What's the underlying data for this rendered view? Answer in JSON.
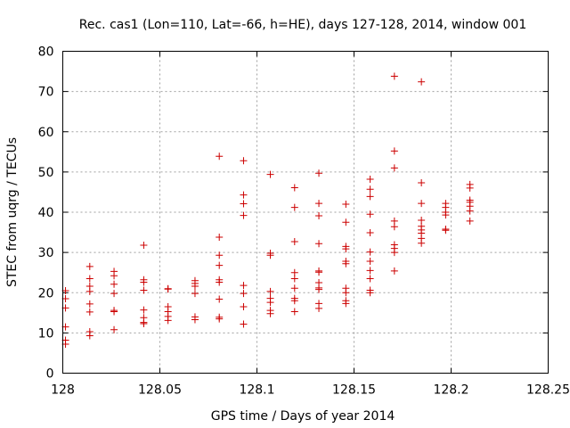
{
  "chart_data": {
    "type": "scatter",
    "title": "Rec. cas1 (Lon=110, Lat=-66, h=HE), days 127-128, 2014, window 001",
    "xlabel": "GPS time / Days of year 2014",
    "ylabel": "STEC from uqrg / TECUs",
    "xlim": [
      128,
      128.25
    ],
    "ylim": [
      0,
      80
    ],
    "x_ticks": [
      128,
      128.05,
      128.1,
      128.15,
      128.2,
      128.25
    ],
    "x_tick_labels": [
      "128",
      "128.05",
      "128.1",
      "128.15",
      "128.2",
      "128.25"
    ],
    "y_ticks": [
      0,
      10,
      20,
      30,
      40,
      50,
      60,
      70,
      80
    ],
    "y_tick_labels": [
      "0",
      "10",
      "20",
      "30",
      "40",
      "50",
      "60",
      "70",
      "80"
    ],
    "grid": true,
    "marker": "+",
    "color": "#cc0000",
    "series": [
      {
        "name": "STEC",
        "points": [
          [
            128.0014,
            7.2
          ],
          [
            128.0014,
            8.2
          ],
          [
            128.0014,
            11.5
          ],
          [
            128.0014,
            16.2
          ],
          [
            128.0014,
            18.5
          ],
          [
            128.0014,
            20.5
          ],
          [
            128.0139,
            9.3
          ],
          [
            128.0139,
            10.3
          ],
          [
            128.0139,
            15.2
          ],
          [
            128.0139,
            17.2
          ],
          [
            128.0139,
            20.3
          ],
          [
            128.0139,
            21.6
          ],
          [
            128.0139,
            23.5
          ],
          [
            128.0139,
            26.5
          ],
          [
            128.0264,
            10.8
          ],
          [
            128.0264,
            15.3
          ],
          [
            128.0264,
            15.6
          ],
          [
            128.0264,
            19.8
          ],
          [
            128.0264,
            22.1
          ],
          [
            128.0264,
            24.2
          ],
          [
            128.0264,
            25.3
          ],
          [
            128.0417,
            12.3
          ],
          [
            128.0417,
            12.6
          ],
          [
            128.0417,
            13.8
          ],
          [
            128.0417,
            15.7
          ],
          [
            128.0417,
            20.6
          ],
          [
            128.0417,
            22.6
          ],
          [
            128.0417,
            23.2
          ],
          [
            128.0417,
            31.8
          ],
          [
            128.0542,
            13.1
          ],
          [
            128.0542,
            14.1
          ],
          [
            128.0542,
            15.3
          ],
          [
            128.0542,
            16.5
          ],
          [
            128.0542,
            20.9
          ],
          [
            128.0542,
            21.0
          ],
          [
            128.0681,
            13.3
          ],
          [
            128.0681,
            14.0
          ],
          [
            128.0681,
            19.8
          ],
          [
            128.0681,
            21.6
          ],
          [
            128.0681,
            22.3
          ],
          [
            128.0681,
            23.0
          ],
          [
            128.0806,
            13.5
          ],
          [
            128.0806,
            13.9
          ],
          [
            128.0806,
            18.4
          ],
          [
            128.0806,
            22.6
          ],
          [
            128.0806,
            23.2
          ],
          [
            128.0806,
            26.8
          ],
          [
            128.0806,
            29.3
          ],
          [
            128.0806,
            33.8
          ],
          [
            128.0806,
            53.9
          ],
          [
            128.0931,
            12.2
          ],
          [
            128.0931,
            16.5
          ],
          [
            128.0931,
            19.8
          ],
          [
            128.0931,
            21.8
          ],
          [
            128.0931,
            39.2
          ],
          [
            128.0931,
            42.1
          ],
          [
            128.0931,
            44.3
          ],
          [
            128.0931,
            52.8
          ],
          [
            128.1069,
            14.8
          ],
          [
            128.1069,
            15.6
          ],
          [
            128.1069,
            17.6
          ],
          [
            128.1069,
            18.6
          ],
          [
            128.1069,
            20.3
          ],
          [
            128.1069,
            29.3
          ],
          [
            128.1069,
            29.8
          ],
          [
            128.1069,
            49.4
          ],
          [
            128.1194,
            15.3
          ],
          [
            128.1194,
            18.0
          ],
          [
            128.1194,
            18.6
          ],
          [
            128.1194,
            21.1
          ],
          [
            128.1194,
            23.5
          ],
          [
            128.1194,
            25.0
          ],
          [
            128.1194,
            32.7
          ],
          [
            128.1194,
            41.2
          ],
          [
            128.1194,
            46.1
          ],
          [
            128.1319,
            16.1
          ],
          [
            128.1319,
            17.3
          ],
          [
            128.1319,
            20.8
          ],
          [
            128.1319,
            21.2
          ],
          [
            128.1319,
            22.5
          ],
          [
            128.1319,
            25.1
          ],
          [
            128.1319,
            25.4
          ],
          [
            128.1319,
            32.2
          ],
          [
            128.1319,
            39.1
          ],
          [
            128.1319,
            42.2
          ],
          [
            128.1319,
            49.7
          ],
          [
            128.1458,
            17.3
          ],
          [
            128.1458,
            18.0
          ],
          [
            128.1458,
            20.0
          ],
          [
            128.1458,
            21.1
          ],
          [
            128.1458,
            27.2
          ],
          [
            128.1458,
            27.8
          ],
          [
            128.1458,
            30.9
          ],
          [
            128.1458,
            31.5
          ],
          [
            128.1458,
            37.5
          ],
          [
            128.1458,
            42.0
          ],
          [
            128.1583,
            20.0
          ],
          [
            128.1583,
            20.6
          ],
          [
            128.1583,
            23.5
          ],
          [
            128.1583,
            25.5
          ],
          [
            128.1583,
            27.8
          ],
          [
            128.1583,
            30.1
          ],
          [
            128.1583,
            34.9
          ],
          [
            128.1583,
            39.5
          ],
          [
            128.1583,
            43.9
          ],
          [
            128.1583,
            45.7
          ],
          [
            128.1583,
            48.2
          ],
          [
            128.1708,
            25.4
          ],
          [
            128.1708,
            30.0
          ],
          [
            128.1708,
            31.0
          ],
          [
            128.1708,
            31.9
          ],
          [
            128.1708,
            36.4
          ],
          [
            128.1708,
            37.8
          ],
          [
            128.1708,
            51.0
          ],
          [
            128.1708,
            55.2
          ],
          [
            128.1708,
            73.8
          ],
          [
            128.1847,
            32.3
          ],
          [
            128.1847,
            33.5
          ],
          [
            128.1847,
            34.8
          ],
          [
            128.1847,
            35.6
          ],
          [
            128.1847,
            36.5
          ],
          [
            128.1847,
            38.0
          ],
          [
            128.1847,
            42.2
          ],
          [
            128.1847,
            47.3
          ],
          [
            128.1847,
            72.4
          ],
          [
            128.1972,
            35.5
          ],
          [
            128.1972,
            35.8
          ],
          [
            128.1972,
            39.3
          ],
          [
            128.1972,
            40.0
          ],
          [
            128.1972,
            41.2
          ],
          [
            128.1972,
            42.2
          ],
          [
            128.2097,
            37.8
          ],
          [
            128.2097,
            40.3
          ],
          [
            128.2097,
            41.5
          ],
          [
            128.2097,
            42.5
          ],
          [
            128.2097,
            43.0
          ],
          [
            128.2097,
            46.0
          ],
          [
            128.2097,
            46.9
          ]
        ]
      }
    ]
  }
}
